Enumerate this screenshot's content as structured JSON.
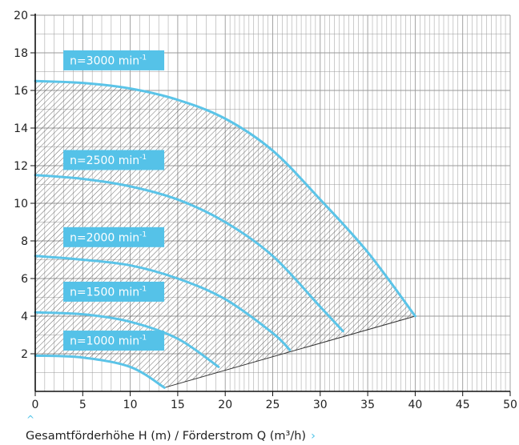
{
  "chart_data": {
    "type": "line",
    "caption": "Gesamtförderhöhe H (m) / Förderstrom Q (m³/h)",
    "x_ticks": [
      "0",
      "5",
      "10",
      "15",
      "20",
      "25",
      "30",
      "35",
      "40",
      "45",
      "50"
    ],
    "y_ticks": [
      "2",
      "4",
      "6",
      "8",
      "10",
      "12",
      "14",
      "16",
      "18",
      "20"
    ],
    "xlim": [
      0,
      50
    ],
    "ylim": [
      0,
      20
    ],
    "grid": true,
    "series": [
      {
        "name": "n=3000 min-1",
        "label_main": "n=3000 min",
        "label_sup": "-1",
        "x": [
          0,
          5,
          10,
          15,
          20,
          25,
          30,
          35,
          40
        ],
        "y": [
          16.5,
          16.4,
          16.1,
          15.5,
          14.5,
          12.8,
          10.2,
          7.4,
          4.0
        ]
      },
      {
        "name": "n=2500 min-1",
        "label_main": "n=2500 min",
        "label_sup": "-1",
        "x": [
          0,
          5,
          10,
          15,
          20,
          25,
          30,
          32.4
        ],
        "y": [
          11.5,
          11.3,
          10.9,
          10.2,
          9.0,
          7.2,
          4.5,
          3.2
        ]
      },
      {
        "name": "n=2000 min-1",
        "label_main": "n=2000 min",
        "label_sup": "-1",
        "x": [
          0,
          5,
          10,
          15,
          20,
          25,
          26.8
        ],
        "y": [
          7.2,
          7.0,
          6.7,
          6.0,
          4.9,
          3.1,
          2.2
        ]
      },
      {
        "name": "n=1500 min-1",
        "label_main": "n=1500 min",
        "label_sup": "-1",
        "x": [
          0,
          5,
          10,
          15,
          19.3
        ],
        "y": [
          4.2,
          4.1,
          3.7,
          2.8,
          1.3
        ]
      },
      {
        "name": "n=1000 min-1",
        "label_main": "n=1000 min",
        "label_sup": "-1",
        "x": [
          0,
          5,
          10,
          13.6
        ],
        "y": [
          1.9,
          1.8,
          1.3,
          0.2
        ]
      }
    ],
    "operating_limit": {
      "x": [
        13.6,
        40
      ],
      "y": [
        0.2,
        4.0
      ]
    },
    "label_positions_data": [
      [
        3.8,
        17.6
      ],
      [
        3.8,
        12.3
      ],
      [
        3.8,
        8.2
      ],
      [
        3.8,
        5.3
      ],
      [
        3.8,
        2.7
      ]
    ],
    "colors": {
      "curve": "#5bc4e8",
      "label_bg": "#55c2e8",
      "grid": "#999999",
      "axis": "#111111",
      "hatch": "#444444"
    }
  }
}
